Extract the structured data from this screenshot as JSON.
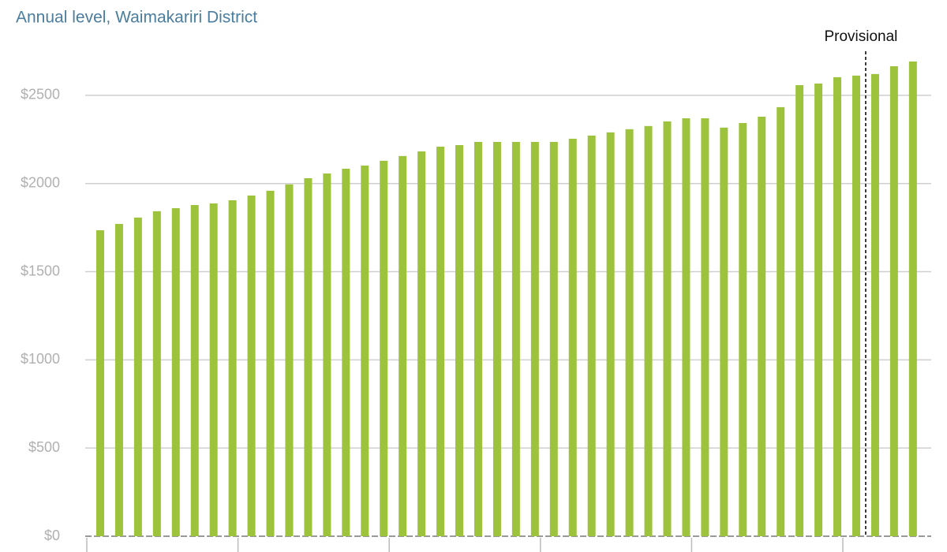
{
  "chart_data": {
    "type": "bar",
    "subtitle": "Annual level, Waimakariri District",
    "annotation": "Provisional",
    "categories": [
      null,
      null,
      null,
      null,
      null,
      null,
      null,
      null,
      null,
      null,
      null,
      null,
      null,
      null,
      null,
      null,
      null,
      null,
      null,
      null,
      null,
      null,
      null,
      null,
      null,
      null,
      null,
      null,
      null,
      null,
      null,
      null,
      null,
      null,
      null,
      null,
      null,
      null,
      null,
      null,
      null,
      null,
      null,
      null
    ],
    "values": [
      1735,
      1771,
      1807,
      1843,
      1860,
      1878,
      1887,
      1905,
      1932,
      1959,
      1995,
      2030,
      2057,
      2084,
      2102,
      2129,
      2156,
      2182,
      2209,
      2218,
      2236,
      2236,
      2236,
      2236,
      2236,
      2254,
      2272,
      2290,
      2308,
      2326,
      2352,
      2370,
      2370,
      2317,
      2343,
      2379,
      2433,
      2558,
      2567,
      2603,
      2612,
      2621,
      2665,
      2692
    ],
    "color": "#9dc23b",
    "ylim": [
      0,
      2750
    ],
    "yticks": [
      {
        "value": 0,
        "label": "$0"
      },
      {
        "value": 500,
        "label": "$500"
      },
      {
        "value": 1000,
        "label": "$1000"
      },
      {
        "value": 1500,
        "label": "$1500"
      },
      {
        "value": 2000,
        "label": "$2000"
      },
      {
        "value": 2500,
        "label": "$2500"
      }
    ],
    "grid": true
  }
}
